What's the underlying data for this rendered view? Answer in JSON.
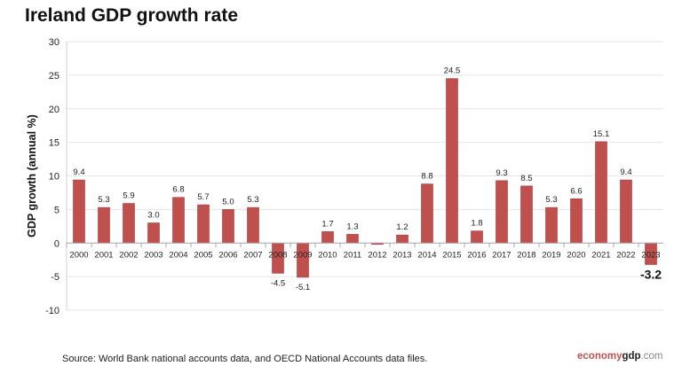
{
  "chart_data": {
    "type": "bar",
    "title": "Ireland GDP growth rate",
    "ylabel": "GDP growth (annual %)",
    "xlabel": "",
    "ylim": [
      -10,
      30
    ],
    "yticks": [
      -10,
      -5,
      0,
      5,
      10,
      15,
      20,
      25,
      30
    ],
    "grid": true,
    "bar_color": "#c0504d",
    "categories": [
      "2000",
      "2001",
      "2002",
      "2003",
      "2004",
      "2005",
      "2006",
      "2007",
      "2008",
      "2009",
      "2010",
      "2011",
      "2012",
      "2013",
      "2014",
      "2015",
      "2016",
      "2017",
      "2018",
      "2019",
      "2020",
      "2021",
      "2022",
      "2023"
    ],
    "values": [
      9.4,
      5.3,
      5.9,
      3.0,
      6.8,
      5.7,
      5.0,
      5.3,
      -4.5,
      -5.1,
      1.7,
      1.3,
      -0.1,
      1.2,
      8.8,
      24.5,
      1.8,
      9.3,
      8.5,
      5.3,
      6.6,
      15.1,
      9.4,
      -3.2
    ],
    "labels": [
      "9.4",
      "5.3",
      "5.9",
      "3.0",
      "6.8",
      "5.7",
      "5.0",
      "5.3",
      "-4.5",
      "-5.1",
      "1.7",
      "1.3",
      null,
      "1.2",
      "8.8",
      "24.5",
      "1.8",
      "9.3",
      "8.5",
      "5.3",
      "6.6",
      "15.1",
      "9.4",
      "-3.2"
    ]
  },
  "footer": {
    "source": "Source:  World Bank national accounts data, and OECD National Accounts data files.",
    "brand_a": "economy",
    "brand_b": "gdp",
    "brand_c": ".com"
  }
}
